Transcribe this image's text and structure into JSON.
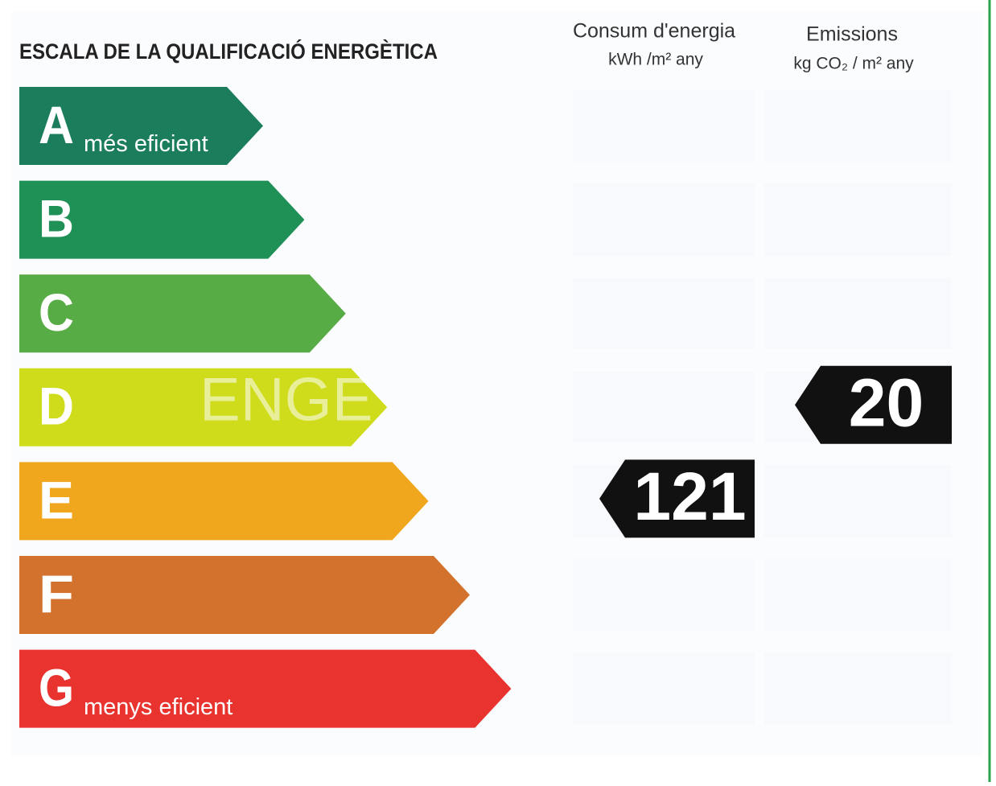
{
  "title": "ESCALA DE LA QUALIFICACIÓ ENERGÈTICA",
  "columns": [
    {
      "title": "Consum d'energia",
      "unit": "kWh /m² any"
    },
    {
      "title": "Emissions",
      "unit": "kg CO₂ / m² any"
    }
  ],
  "watermark": "ENGE",
  "classes": [
    {
      "letter": "A",
      "label": "més eficient",
      "color": "#1b7d5c"
    },
    {
      "letter": "B",
      "color": "#1f9157"
    },
    {
      "letter": "C",
      "color": "#58ac46"
    },
    {
      "letter": "D",
      "color": "#cfdc1c",
      "emissions": "20"
    },
    {
      "letter": "E",
      "color": "#f1a71d",
      "consumption": "121"
    },
    {
      "letter": "F",
      "color": "#d2722c"
    },
    {
      "letter": "G",
      "label": "menys eficient",
      "color": "#e8332f"
    }
  ]
}
